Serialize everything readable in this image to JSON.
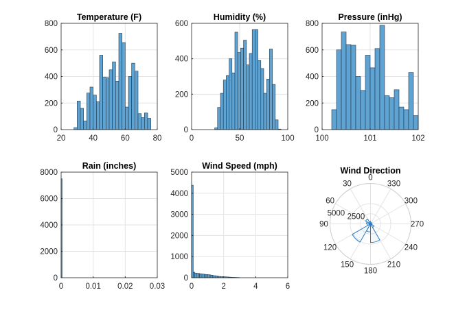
{
  "colors": {
    "bar_fill": "#5fa3d3",
    "bar_edge": "#1f3548",
    "axis": "#262626",
    "grid": "#e3e3e3",
    "polar_line": "#2f7cc0"
  },
  "chart_data": [
    {
      "type": "bar",
      "title": "Temperature (F)",
      "xlim": [
        20,
        80
      ],
      "ylim": [
        0,
        800
      ],
      "xticks": [
        20,
        40,
        60,
        80
      ],
      "yticks": [
        0,
        200,
        400,
        600,
        800
      ],
      "bin_edges_start": 28,
      "bin_width": 2,
      "values": [
        15,
        215,
        160,
        65,
        275,
        320,
        260,
        210,
        560,
        395,
        390,
        450,
        510,
        365,
        725,
        655,
        170,
        400,
        500,
        440,
        120,
        90,
        125,
        85
      ],
      "grid": true
    },
    {
      "type": "bar",
      "title": "Humidity (%)",
      "xlim": [
        0,
        100
      ],
      "ylim": [
        0,
        600
      ],
      "xticks": [
        0,
        50,
        100
      ],
      "yticks": [
        0,
        200,
        400,
        600
      ],
      "bin_edges_start": 24,
      "bin_width": 3,
      "values": [
        10,
        125,
        205,
        280,
        305,
        400,
        320,
        550,
        435,
        460,
        505,
        365,
        430,
        565,
        565,
        390,
        345,
        205,
        285,
        455,
        255,
        55,
        3
      ],
      "grid": true
    },
    {
      "type": "bar",
      "title": "Pressure (inHg)",
      "xlim": [
        100,
        102
      ],
      "ylim": [
        0,
        800
      ],
      "xticks": [
        100,
        101,
        102
      ],
      "yticks": [
        0,
        200,
        400,
        600,
        800
      ],
      "bin_edges_start": 100.2,
      "bin_width": 0.1,
      "values": [
        150,
        600,
        735,
        640,
        635,
        400,
        295,
        560,
        465,
        610,
        785,
        255,
        240,
        300,
        170,
        150,
        430,
        105
      ],
      "grid": true
    },
    {
      "type": "bar",
      "title": "Rain (inches)",
      "xlim": [
        0,
        0.03
      ],
      "ylim": [
        0,
        8000
      ],
      "xticks": [
        0,
        0.01,
        0.02,
        0.03
      ],
      "yticks": [
        0,
        2000,
        4000,
        6000,
        8000
      ],
      "bin_edges_start": 0,
      "bin_width": 0.0003,
      "values": [
        7500
      ],
      "grid": true
    },
    {
      "type": "bar",
      "title": "Wind Speed (mph)",
      "xlim": [
        0,
        6
      ],
      "ylim": [
        0,
        5000
      ],
      "xticks": [
        0,
        2,
        4,
        6
      ],
      "yticks": [
        0,
        1000,
        2000,
        3000,
        4000,
        5000
      ],
      "bin_edges_start": 0,
      "bin_width": 0.1,
      "values": [
        4380,
        260,
        220,
        210,
        200,
        190,
        180,
        170,
        160,
        150,
        145,
        135,
        120,
        105,
        95,
        85,
        70,
        60,
        55,
        50,
        45,
        40,
        35,
        30,
        25,
        20,
        18,
        15,
        12,
        10
      ],
      "grid": true
    },
    {
      "type": "polar_histogram",
      "title": "Wind Direction",
      "theta_zero": "top",
      "theta_direction": "counterclockwise",
      "theta_ticks": [
        0,
        30,
        60,
        90,
        120,
        150,
        180,
        210,
        240,
        270,
        300,
        330
      ],
      "r_ticks": [
        2500,
        5000
      ],
      "rlim": [
        0,
        5000
      ],
      "bin_width_deg": 30,
      "bin_starts_deg": [
        0,
        30,
        60,
        90,
        120,
        150,
        180,
        210,
        240,
        270,
        300,
        330
      ],
      "values": [
        300,
        700,
        500,
        400,
        2600,
        1000,
        2300,
        500,
        200,
        150,
        150,
        200
      ]
    }
  ]
}
